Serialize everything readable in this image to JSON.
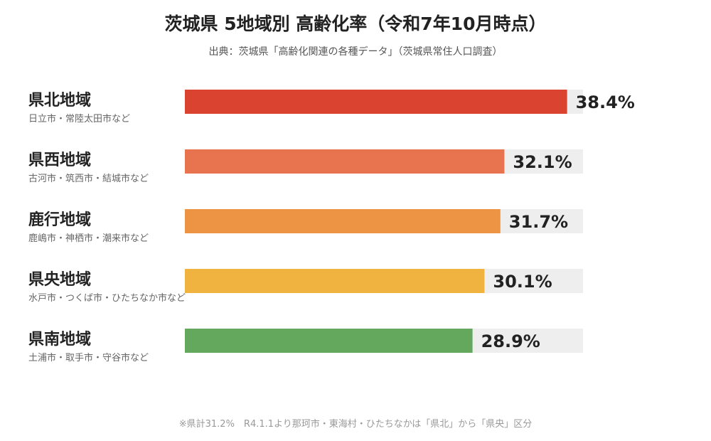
{
  "title": "茨城県 5地域別 高齢化率（令和7年10月時点）",
  "subtitle": "出典：茨城県「高齢化関連の各種データ」（茨城県常住人口調査）",
  "footnote": "※県計31.2%　R4.1.1より那珂市・東海村・ひたちなかは「県北」から「県央」区分",
  "chart_data": {
    "type": "bar",
    "orientation": "horizontal",
    "categories": [
      "県北地域",
      "県西地域",
      "鹿行地域",
      "県央地域",
      "県南地域"
    ],
    "subcategories": [
      "日立市・常陸太田市など",
      "古河市・筑西市・結城市など",
      "鹿嶋市・神栖市・潮来市など",
      "水戸市・つくば市・ひたちなか市など",
      "土浦市・取手市・守谷市など"
    ],
    "values": [
      38.4,
      32.1,
      31.7,
      30.1,
      28.9
    ],
    "value_labels": [
      "38.4%",
      "32.1%",
      "31.7%",
      "30.1%",
      "28.9%"
    ],
    "colors": [
      "#d9432f",
      "#e8744f",
      "#ec9444",
      "#f0b33f",
      "#64a85e"
    ],
    "track_color": "#eeeeee",
    "xlim": [
      0,
      40
    ],
    "grid": false,
    "legend": "none"
  }
}
